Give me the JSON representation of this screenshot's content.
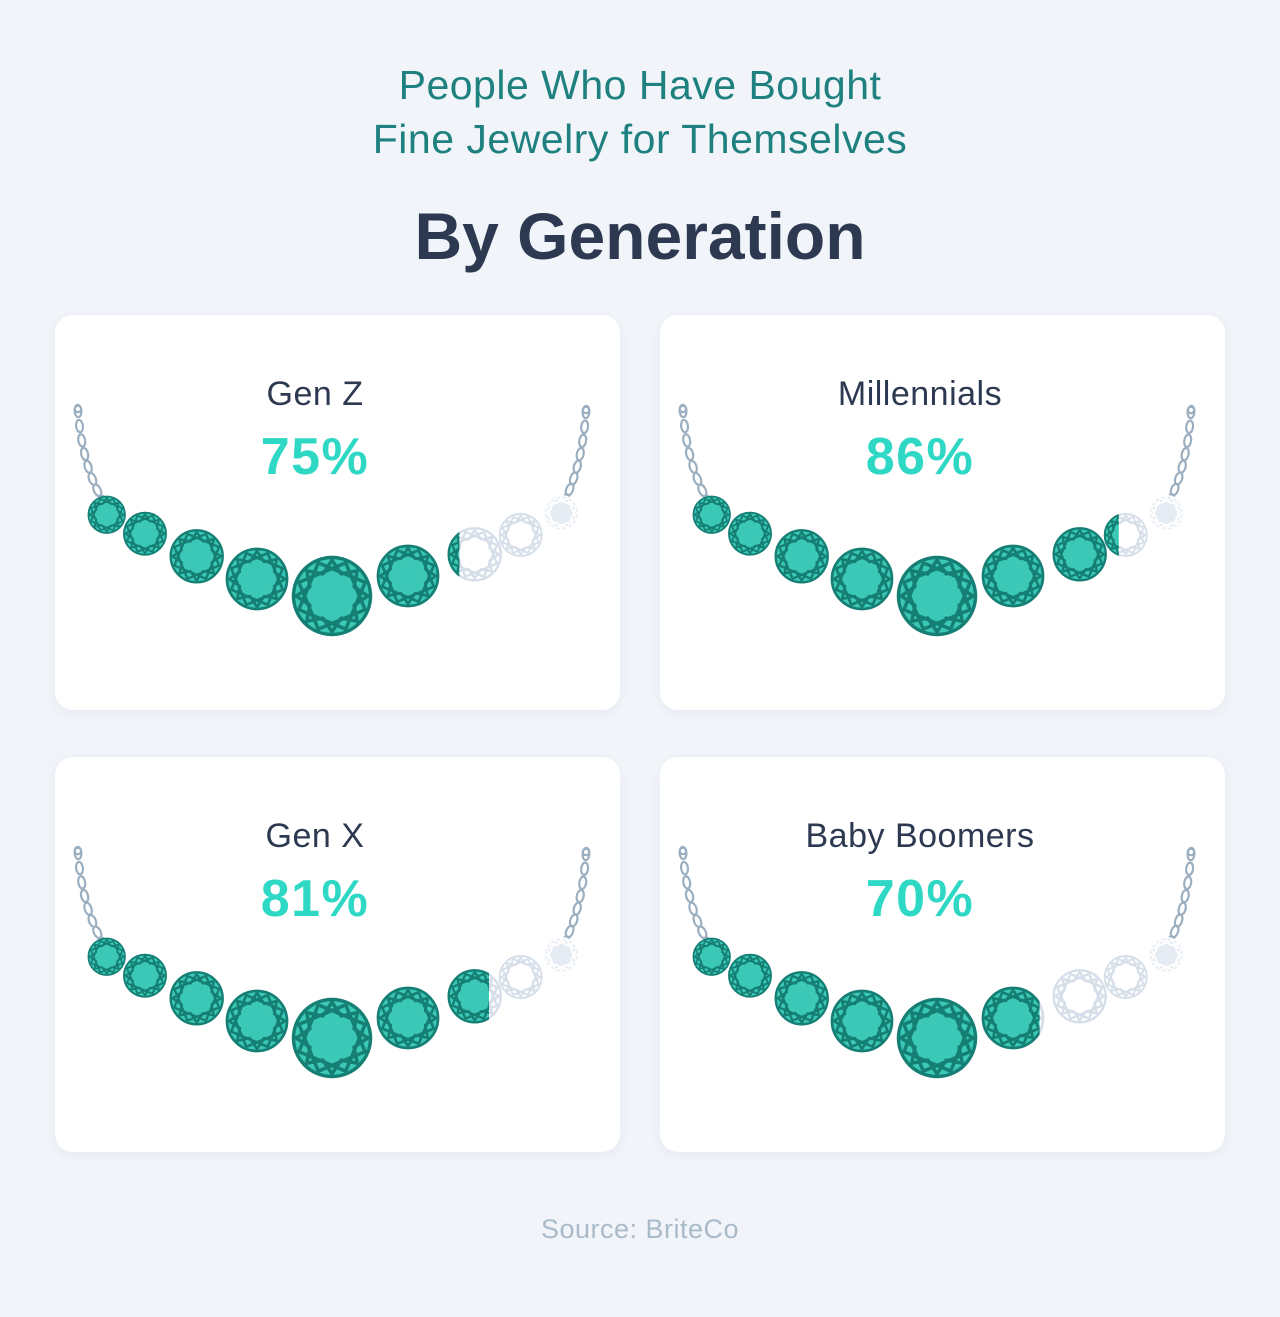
{
  "header": {
    "subtitle_line1": "People Who Have Bought",
    "subtitle_line2": "Fine Jewelry for Themselves",
    "title": "By Generation"
  },
  "cards": [
    {
      "label": "Gen Z",
      "percent": 75,
      "percent_label": "75%"
    },
    {
      "label": "Millennials",
      "percent": 86,
      "percent_label": "86%"
    },
    {
      "label": "Gen X",
      "percent": 81,
      "percent_label": "81%"
    },
    {
      "label": "Baby Boomers",
      "percent": 70,
      "percent_label": "70%"
    }
  ],
  "footer": {
    "source_label": "Source: BriteCo"
  },
  "colors": {
    "background": "#f1f4f9",
    "card": "#ffffff",
    "heading_teal": "#1f817f",
    "heading_navy": "#2d3950",
    "percent_text": "#2fd8c4",
    "gem_fill": "#3bc8b6",
    "gem_stroke": "#157f74",
    "gem_empty_fill": "#ffffff",
    "gem_empty_stroke": "#d5dee9",
    "gem_end_fill": "#e6ecf3",
    "gem_end_stroke": "#ffffff",
    "chain": "#9bafc0",
    "source_text": "#a9bbc9"
  },
  "chart_data": {
    "type": "bar",
    "variant": "pictogram-necklace",
    "title": "People Who Have Bought Fine Jewelry for Themselves — By Generation",
    "categories": [
      "Gen Z",
      "Millennials",
      "Gen X",
      "Baby Boomers"
    ],
    "values": [
      75,
      86,
      81,
      70
    ],
    "unit": "%",
    "value_range": [
      0,
      100
    ],
    "legend": false,
    "grid": false,
    "source": "Source: BriteCo",
    "notes": "Each necklace holds 9 round gems; the teal fill is clipped at the category percentage of the necklace width, remaining gems shown as light gray outlines."
  }
}
